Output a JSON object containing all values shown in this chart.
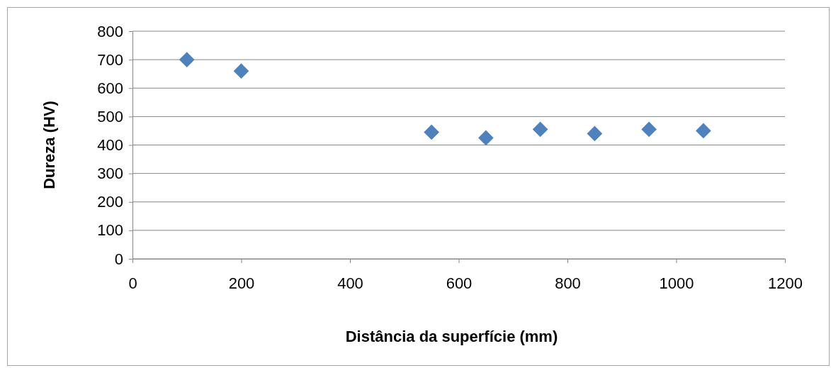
{
  "chart_data": {
    "type": "scatter",
    "xlabel": "Distância da superfície (mm)",
    "ylabel": "Dureza (HV)",
    "x": [
      100,
      200,
      550,
      650,
      750,
      850,
      950,
      1050
    ],
    "series": [
      {
        "color": "#4f81bd",
        "values": [
          700,
          660,
          445,
          425,
          455,
          440,
          455,
          450
        ]
      }
    ],
    "xlim": [
      0,
      1200
    ],
    "xticks": [
      0,
      200,
      400,
      600,
      800,
      1000,
      1200
    ],
    "ylim": [
      0,
      800
    ],
    "yticks": [
      0,
      100,
      200,
      300,
      400,
      500,
      600,
      700,
      800
    ],
    "grid": "y",
    "marker": "diamond"
  }
}
